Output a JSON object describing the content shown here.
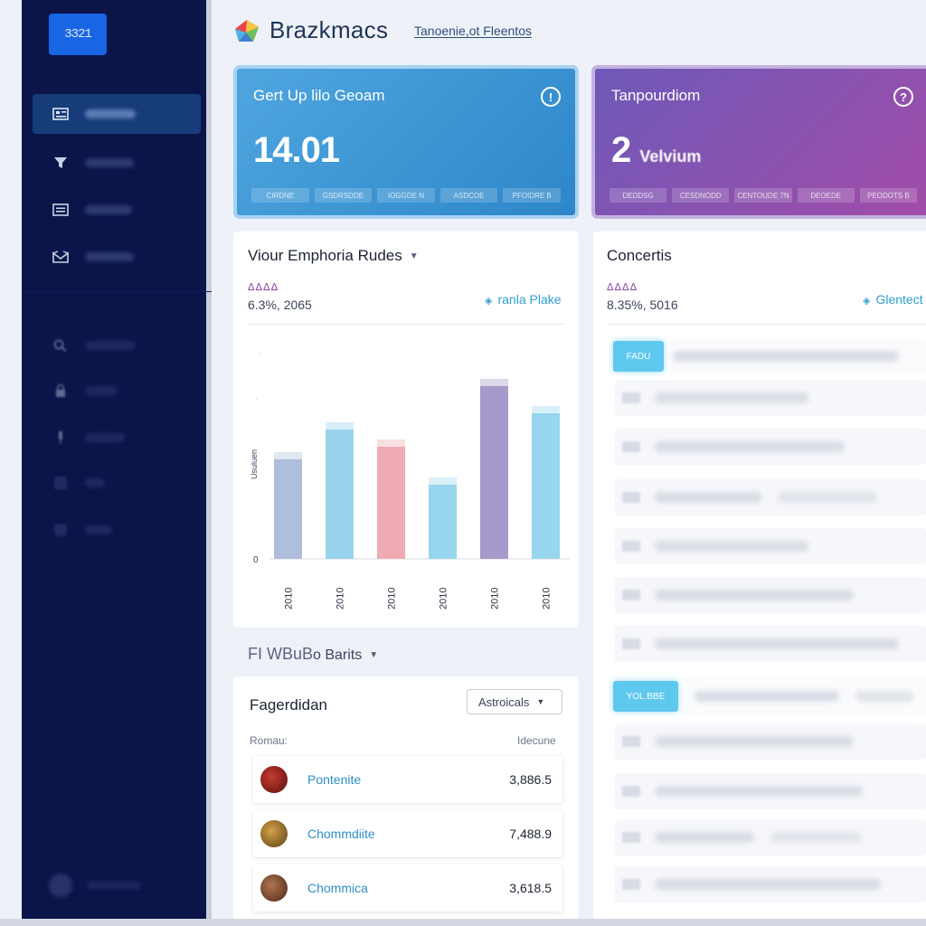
{
  "sidebar": {
    "logo_text": "3321",
    "items": [
      {
        "icon": "dashboard-icon",
        "active": true
      },
      {
        "icon": "filter-icon"
      },
      {
        "icon": "list-icon"
      },
      {
        "icon": "inbox-icon"
      },
      {
        "icon": "search-icon"
      },
      {
        "icon": "lock-icon"
      },
      {
        "icon": "pin-icon"
      },
      {
        "icon": "square-icon"
      },
      {
        "icon": "circle-icon"
      }
    ]
  },
  "header": {
    "brand": "Brazkmacs",
    "link": "Tanoenie,ot Fleentos"
  },
  "stats": [
    {
      "title": "Gert Up lilo Geoam",
      "value": "14.01",
      "value_sub": "",
      "info_icon": "info-icon",
      "pills": [
        "CIRDNE",
        "GSDRSDDE",
        "IOGGDE N",
        "ASDCOE",
        "PFOIDRE B"
      ],
      "color": "#3d95d5"
    },
    {
      "title": "Tanpourdiom",
      "value": "2",
      "value_sub": "Velvium",
      "info_icon": "help-icon",
      "pills": [
        "DEDDSG",
        "CESDNODD",
        "CENTOUDE 7N",
        "DEOEDE",
        "PEODOTS B"
      ],
      "color": "#8550b2"
    }
  ],
  "chart_panel": {
    "title": "Viour Emphoria Rudes",
    "glyphs": "ⵠⵠⵠⵠ",
    "meta": "6.3%, 2065",
    "link": "ranla Plake",
    "chart_data": {
      "type": "bar",
      "categories": [
        "2010",
        "2010",
        "2010",
        "2010",
        "2010",
        "2010"
      ],
      "values": [
        110,
        143,
        124,
        82,
        191,
        161
      ],
      "colors": [
        "#a7b9d8",
        "#8fd0ea",
        "#eea4ad",
        "#8fd3ec",
        "#9e91c5",
        "#8fd3ec"
      ],
      "ylabel": "Usuluen",
      "ytick_zero": "0",
      "ylim": [
        0,
        230
      ]
    }
  },
  "concepts_panel": {
    "title": "Concertis",
    "glyphs": "ⵠⵠⵠⵠ",
    "meta": "8.35%, 5016",
    "link": "Glentect",
    "tags": [
      "FADU",
      "YOL.BBE"
    ],
    "row_codes": [
      "ODE",
      "OOI",
      "OCO",
      "OCD",
      "OOS",
      "OOS",
      "OOD",
      "OOS",
      "OOO",
      "OOS"
    ]
  },
  "bottom_section": {
    "title_bold": "FI WBuB",
    "title_rest": "o Barits",
    "card_title": "Fagerdidan",
    "dropdown": "Astroicals",
    "col_left": "Romau:",
    "col_right": "Idecune",
    "rows": [
      {
        "name": "Pontenite",
        "value": "3,886.5",
        "avatar": "#8e1d1d"
      },
      {
        "name": "Chommdiite",
        "value": "7,488.9",
        "avatar": "#9a7434"
      },
      {
        "name": "Chommica",
        "value": "3,618.5",
        "avatar": "#7a4830"
      }
    ]
  }
}
